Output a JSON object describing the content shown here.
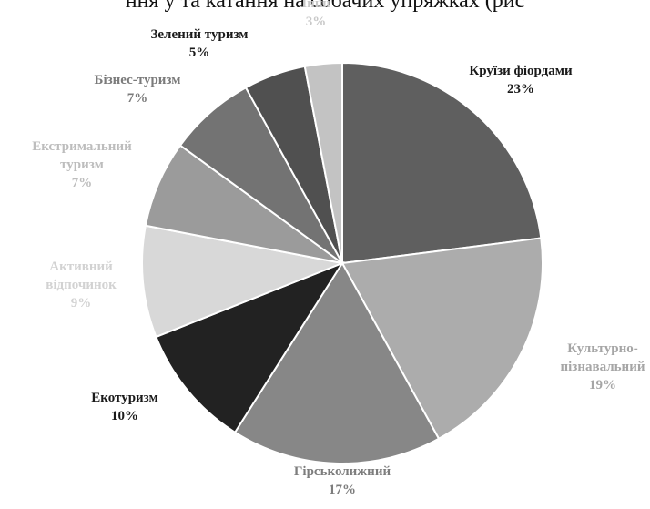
{
  "page": {
    "top_text": "ння у та катання на собачих упряжках (рис"
  },
  "chart_data": {
    "type": "pie",
    "title": "",
    "start": "12 o'clock",
    "direction": "clockwise",
    "legend": "none",
    "slices": [
      {
        "label_lines": [
          "Круїзи фіордами"
        ],
        "pct_label": "23%",
        "value": 23,
        "color": "#5f5f5f",
        "label_color": "#1a1a1a"
      },
      {
        "label_lines": [
          "Культурно-",
          "пізнавальний"
        ],
        "pct_label": "19%",
        "value": 19,
        "color": "#acacac",
        "label_color": "#a6a6a6"
      },
      {
        "label_lines": [
          "Гірськолижний"
        ],
        "pct_label": "17%",
        "value": 17,
        "color": "#878787",
        "label_color": "#7d7d7d"
      },
      {
        "label_lines": [
          "Екотуризм"
        ],
        "pct_label": "10%",
        "value": 10,
        "color": "#222222",
        "label_color": "#1a1a1a"
      },
      {
        "label_lines": [
          "Активний",
          "відпочинок"
        ],
        "pct_label": "9%",
        "value": 9,
        "color": "#d8d8d8",
        "label_color": "#d2d2d2"
      },
      {
        "label_lines": [
          "Екстримальний",
          "туризм"
        ],
        "pct_label": "7%",
        "value": 7,
        "color": "#9b9b9b",
        "label_color": "#bdbdbd"
      },
      {
        "label_lines": [
          "Бізнес-туризм"
        ],
        "pct_label": "7%",
        "value": 7,
        "color": "#737373",
        "label_color": "#7b7b7b"
      },
      {
        "label_lines": [
          "Зелений туризм"
        ],
        "pct_label": "5%",
        "value": 5,
        "color": "#505050",
        "label_color": "#1a1a1a"
      },
      {
        "label_lines": [
          "Інші"
        ],
        "pct_label": "3%",
        "value": 3,
        "color": "#c3c3c3",
        "label_color": "#c8c8c8"
      }
    ]
  }
}
